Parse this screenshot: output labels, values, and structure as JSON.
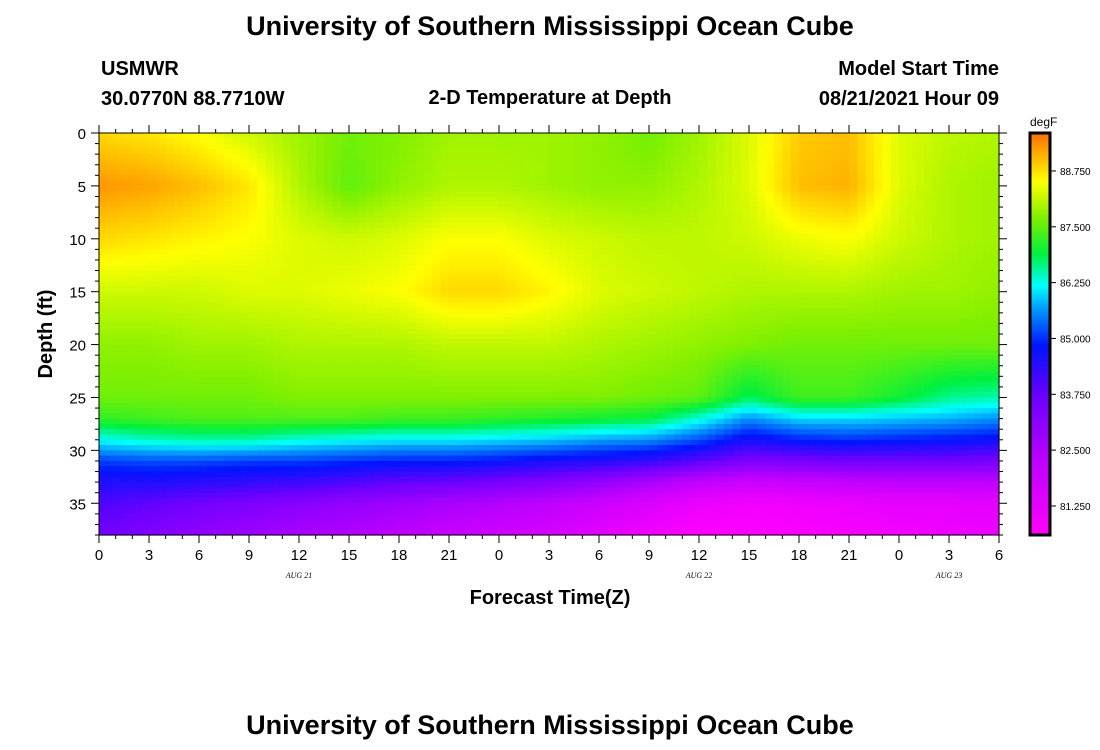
{
  "page": {
    "title_top": "University of Southern Mississippi Ocean Cube",
    "title_bottom": "University of Southern Mississippi Ocean Cube",
    "station": "USMWR",
    "location": "30.0770N  88.7710W",
    "model_start_label": "Model Start Time",
    "model_start_value": "08/21/2021 Hour 09"
  },
  "chart_data": {
    "type": "heatmap",
    "title": "2-D Temperature at Depth",
    "xlabel": "Forecast Time(Z)",
    "ylabel": "Depth (ft)",
    "x_range_hours": [
      0,
      54
    ],
    "y_range": [
      0,
      38
    ],
    "y_inverted": true,
    "y_ticks": [
      "0",
      "5",
      "10",
      "15",
      "20",
      "25",
      "30",
      "35"
    ],
    "y_tick_values": [
      0,
      5,
      10,
      15,
      20,
      25,
      30,
      35
    ],
    "x_ticks": [
      "0",
      "3",
      "6",
      "9",
      "12",
      "15",
      "18",
      "21",
      "0",
      "3",
      "6",
      "9",
      "12",
      "15",
      "18",
      "21",
      "0",
      "3",
      "6"
    ],
    "x_tick_hours": [
      0,
      3,
      6,
      9,
      12,
      15,
      18,
      21,
      24,
      27,
      30,
      33,
      36,
      39,
      42,
      45,
      48,
      51,
      54
    ],
    "date_labels": [
      {
        "text": "AUG  21",
        "hour": 12
      },
      {
        "text": "AUG  22",
        "hour": 36
      },
      {
        "text": "AUG  23",
        "hour": 51
      }
    ],
    "colorbar": {
      "unit": "degF",
      "range": [
        80.6,
        89.6
      ],
      "ticks": [
        "81.250",
        "82.500",
        "83.750",
        "85.000",
        "86.250",
        "87.500",
        "88.750"
      ],
      "tick_values": [
        81.25,
        82.5,
        83.75,
        85.0,
        86.25,
        87.5,
        88.75
      ]
    },
    "temperature_grid": {
      "hours": [
        0,
        3,
        6,
        9,
        12,
        15,
        18,
        21,
        24,
        27,
        30,
        33,
        36,
        39,
        42,
        45,
        48,
        51,
        54
      ],
      "depths": [
        0,
        5,
        10,
        15,
        20,
        25,
        27,
        29,
        31,
        33,
        35,
        38
      ],
      "values_degF": [
        [
          88.8,
          88.7,
          88.5,
          88.2,
          87.9,
          87.6,
          87.7,
          87.9,
          87.9,
          87.9,
          87.8,
          87.6,
          87.9,
          88.3,
          88.9,
          89.0,
          88.3,
          88.1,
          88.0
        ],
        [
          89.3,
          89.2,
          89.0,
          88.7,
          88.0,
          87.5,
          87.8,
          88.0,
          88.0,
          87.9,
          87.8,
          87.8,
          88.0,
          88.3,
          89.0,
          89.1,
          88.3,
          88.0,
          87.9
        ],
        [
          88.8,
          88.7,
          88.6,
          88.5,
          88.3,
          88.2,
          88.3,
          88.5,
          88.5,
          88.3,
          88.2,
          88.1,
          88.1,
          88.2,
          88.4,
          88.5,
          88.2,
          88.0,
          87.9
        ],
        [
          88.2,
          88.2,
          88.2,
          88.3,
          88.3,
          88.4,
          88.5,
          88.8,
          88.8,
          88.6,
          88.3,
          88.2,
          88.1,
          88.0,
          88.0,
          88.0,
          87.9,
          87.9,
          87.8
        ],
        [
          87.8,
          87.8,
          87.9,
          87.9,
          88.0,
          88.0,
          88.0,
          88.1,
          88.1,
          88.1,
          88.0,
          87.9,
          87.8,
          87.7,
          87.6,
          87.6,
          87.6,
          87.6,
          87.6
        ],
        [
          87.6,
          87.6,
          87.6,
          87.6,
          87.7,
          87.7,
          87.7,
          87.7,
          87.7,
          87.7,
          87.7,
          87.6,
          87.5,
          86.8,
          87.3,
          87.3,
          87.0,
          86.6,
          86.5
        ],
        [
          87.2,
          87.3,
          87.4,
          87.4,
          87.4,
          87.4,
          87.3,
          87.3,
          87.2,
          87.1,
          87.0,
          86.9,
          86.3,
          85.6,
          86.0,
          86.0,
          85.9,
          85.8,
          85.6
        ],
        [
          86.2,
          86.4,
          86.5,
          86.5,
          86.3,
          86.2,
          86.1,
          86.1,
          86.0,
          85.9,
          85.7,
          85.6,
          85.2,
          84.6,
          84.9,
          85.0,
          84.9,
          84.8,
          84.7
        ],
        [
          85.1,
          85.2,
          85.2,
          85.1,
          85.1,
          85.0,
          84.9,
          84.9,
          84.8,
          84.6,
          84.5,
          84.3,
          83.9,
          83.4,
          83.5,
          83.6,
          83.6,
          83.6,
          83.5
        ],
        [
          84.5,
          84.5,
          84.4,
          84.3,
          84.2,
          84.0,
          83.8,
          83.7,
          83.5,
          83.3,
          83.0,
          82.6,
          82.1,
          81.9,
          82.0,
          82.1,
          82.2,
          82.2,
          82.2
        ],
        [
          84.0,
          83.8,
          83.6,
          83.4,
          83.2,
          83.0,
          82.8,
          82.6,
          82.4,
          82.2,
          81.9,
          81.5,
          81.1,
          80.9,
          81.0,
          81.1,
          81.2,
          81.2,
          81.3
        ],
        [
          83.6,
          83.3,
          83.0,
          82.8,
          82.6,
          82.4,
          82.2,
          82.0,
          81.8,
          81.6,
          81.3,
          80.9,
          80.6,
          80.6,
          80.7,
          80.8,
          80.9,
          81.0,
          81.0
        ]
      ]
    }
  }
}
